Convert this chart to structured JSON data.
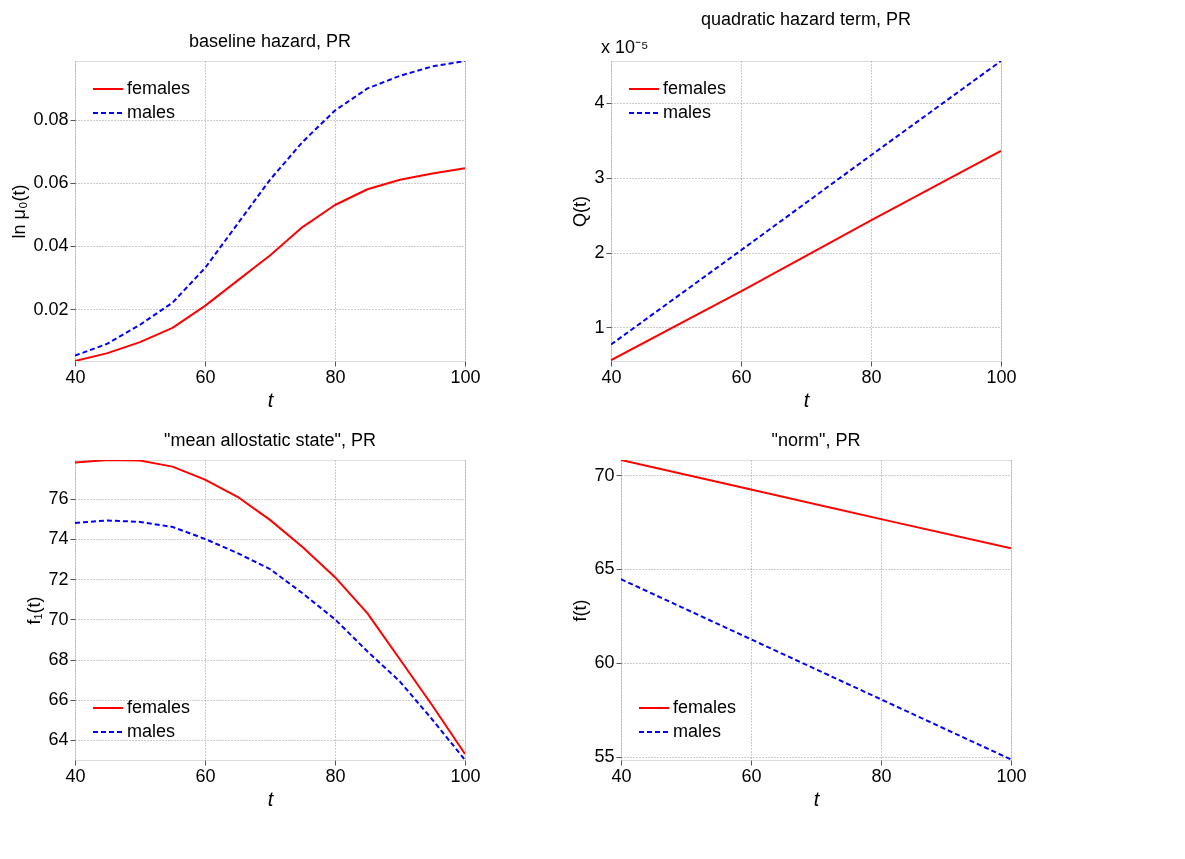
{
  "chart_data": [
    {
      "type": "line",
      "title": "baseline hazard, PR",
      "xlabel": "t",
      "ylabel": "ln μ₀(t)",
      "xlim": [
        40,
        100
      ],
      "xticks": [
        40,
        60,
        80,
        100
      ],
      "ylim": [
        0.0035,
        0.0987
      ],
      "yticks": [
        0.02,
        0.04,
        0.06,
        0.08
      ],
      "grid": true,
      "legend": "top left",
      "x": [
        40,
        45,
        50,
        55,
        60,
        65,
        70,
        75,
        80,
        85,
        90,
        95,
        100
      ],
      "series": [
        {
          "name": "females",
          "color": "#ff0000",
          "line_style": "solid",
          "values": [
            0.0035,
            0.006,
            0.0095,
            0.014,
            0.021,
            0.029,
            0.037,
            0.046,
            0.053,
            0.058,
            0.061,
            0.063,
            0.0647
          ]
        },
        {
          "name": "males",
          "color": "#0000ff",
          "line_style": "dashed",
          "values": [
            0.0052,
            0.009,
            0.015,
            0.022,
            0.033,
            0.047,
            0.061,
            0.073,
            0.083,
            0.09,
            0.094,
            0.097,
            0.0987
          ]
        }
      ]
    },
    {
      "type": "line",
      "title": "quadratic hazard term, PR",
      "xlabel": "t",
      "ylabel": "Q(t)",
      "annotations": [
        "x 10⁻⁵"
      ],
      "xlim": [
        40,
        100
      ],
      "xticks": [
        40,
        60,
        80,
        100
      ],
      "ylim": [
        0.55,
        4.56
      ],
      "yticks": [
        1,
        2,
        3,
        4
      ],
      "grid": true,
      "legend": "top left",
      "x": [
        40,
        60,
        80,
        100
      ],
      "series": [
        {
          "name": "females",
          "color": "#ff0000",
          "line_style": "solid",
          "values": [
            0.56,
            1.48,
            2.43,
            3.36
          ]
        },
        {
          "name": "males",
          "color": "#0000ff",
          "line_style": "dashed",
          "values": [
            0.77,
            2.03,
            3.3,
            4.56
          ]
        }
      ]
    },
    {
      "type": "line",
      "title": "\"mean allostatic state\", PR",
      "xlabel": "t",
      "ylabel": "f₁(t)",
      "xlim": [
        40,
        100
      ],
      "xticks": [
        40,
        60,
        80,
        100
      ],
      "ylim": [
        63,
        77.93
      ],
      "yticks": [
        64,
        66,
        68,
        70,
        72,
        74,
        76
      ],
      "grid": true,
      "legend": "bottom left",
      "x": [
        40,
        45,
        50,
        55,
        60,
        65,
        70,
        75,
        80,
        85,
        90,
        95,
        100
      ],
      "series": [
        {
          "name": "females",
          "color": "#ff0000",
          "line_style": "solid",
          "values": [
            77.8,
            77.93,
            77.9,
            77.6,
            76.95,
            76.1,
            74.95,
            73.6,
            72.1,
            70.3,
            68.0,
            65.7,
            63.3
          ]
        },
        {
          "name": "males",
          "color": "#0000ff",
          "line_style": "dashed",
          "values": [
            74.8,
            74.92,
            74.85,
            74.6,
            74.0,
            73.3,
            72.5,
            71.3,
            70.0,
            68.4,
            66.9,
            65.0,
            63.0
          ]
        }
      ]
    },
    {
      "type": "line",
      "title": "\"norm\", PR",
      "xlabel": "t",
      "ylabel": "f(t)",
      "xlim": [
        40,
        100
      ],
      "xticks": [
        40,
        60,
        80,
        100
      ],
      "ylim": [
        54.82,
        70.8
      ],
      "yticks": [
        55,
        60,
        65,
        70
      ],
      "grid": true,
      "legend": "bottom left",
      "x": [
        40,
        60,
        80,
        100
      ],
      "series": [
        {
          "name": "females",
          "color": "#ff0000",
          "line_style": "solid",
          "values": [
            70.8,
            69.23,
            67.65,
            66.1
          ]
        },
        {
          "name": "males",
          "color": "#0000ff",
          "line_style": "dashed",
          "values": [
            64.45,
            61.25,
            58.05,
            54.85
          ]
        }
      ]
    }
  ]
}
